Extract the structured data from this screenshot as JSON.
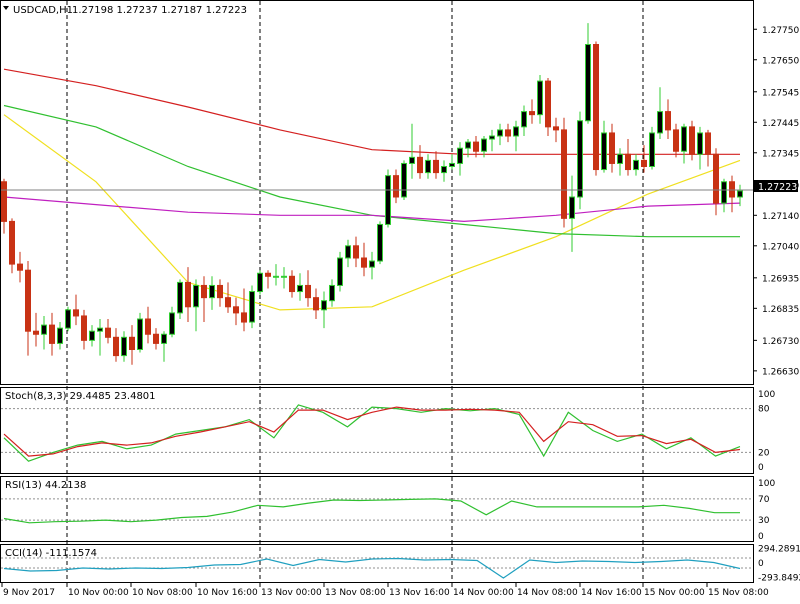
{
  "header": {
    "symbol": "USDCAD,H1",
    "ohlc": "1.27198 1.27237 1.27187 1.27223"
  },
  "price_panel": {
    "current_price": "1.27223",
    "y_ticks": [
      "1.27750",
      "1.27650",
      "1.27545",
      "1.27445",
      "1.27345",
      "1.27240",
      "1.27140",
      "1.27040",
      "1.26935",
      "1.26835",
      "1.26730",
      "1.26630"
    ]
  },
  "stoch_panel": {
    "label": "Stoch(8,3,3) 29.4485 23.4801",
    "y_ticks": [
      "100",
      "80",
      "20",
      "0"
    ]
  },
  "rsi_panel": {
    "label": "RSI(13) 44.2138",
    "y_ticks": [
      "100",
      "70",
      "30",
      "0"
    ]
  },
  "cci_panel": {
    "label": "CCI(14) -111.1574",
    "y_ticks": [
      "294.2891",
      "0",
      "-293.8492"
    ]
  },
  "x_axis": {
    "labels": [
      "9 Nov 2017",
      "10 Nov 00:00",
      "10 Nov 08:00",
      "10 Nov 16:00",
      "13 Nov 00:00",
      "13 Nov 08:00",
      "13 Nov 16:00",
      "14 Nov 00:00",
      "14 Nov 08:00",
      "14 Nov 16:00",
      "15 Nov 00:00",
      "15 Nov 08:00"
    ]
  },
  "colors": {
    "bull": "#32CD32",
    "bear": "#C83214",
    "ma_red": "#D42020",
    "ma_yellow": "#F0E020",
    "ma_green": "#30C030",
    "ma_magenta": "#C020C0",
    "stoch_main": "#30C030",
    "stoch_signal": "#D42020",
    "rsi": "#30C030",
    "cci": "#20A0C0",
    "hline": "#909090"
  },
  "chart_data": {
    "type": "candlestick",
    "title": "USDCAD,H1",
    "ylim": [
      1.266,
      1.278
    ],
    "current_price": 1.27223,
    "candles": [
      [
        1.2725,
        1.2726,
        1.2708,
        1.2712
      ],
      [
        1.2712,
        1.2713,
        1.2695,
        1.2698
      ],
      [
        1.2698,
        1.2702,
        1.2692,
        1.2696
      ],
      [
        1.2696,
        1.2699,
        1.2668,
        1.2676
      ],
      [
        1.2676,
        1.2682,
        1.2671,
        1.2675
      ],
      [
        1.2675,
        1.2681,
        1.267,
        1.2678
      ],
      [
        1.2678,
        1.2682,
        1.2668,
        1.2672
      ],
      [
        1.2672,
        1.2679,
        1.267,
        1.2677
      ],
      [
        1.2677,
        1.2684,
        1.2676,
        1.2683
      ],
      [
        1.2683,
        1.2688,
        1.2678,
        1.2681
      ],
      [
        1.2681,
        1.2683,
        1.267,
        1.2673
      ],
      [
        1.2673,
        1.2678,
        1.2671,
        1.2676
      ],
      [
        1.2676,
        1.268,
        1.2668,
        1.2677
      ],
      [
        1.2677,
        1.268,
        1.2672,
        1.2674
      ],
      [
        1.2674,
        1.2677,
        1.2666,
        1.2668
      ],
      [
        1.2668,
        1.2676,
        1.2666,
        1.2674
      ],
      [
        1.2674,
        1.2678,
        1.2665,
        1.267
      ],
      [
        1.267,
        1.2682,
        1.2669,
        1.268
      ],
      [
        1.268,
        1.2684,
        1.2672,
        1.2675
      ],
      [
        1.2675,
        1.2677,
        1.267,
        1.2672
      ],
      [
        1.2672,
        1.2676,
        1.2666,
        1.2675
      ],
      [
        1.2675,
        1.2684,
        1.2674,
        1.2682
      ],
      [
        1.2682,
        1.2693,
        1.268,
        1.2692
      ],
      [
        1.2692,
        1.2697,
        1.2679,
        1.2684
      ],
      [
        1.2684,
        1.2693,
        1.2676,
        1.2691
      ],
      [
        1.2691,
        1.2694,
        1.2679,
        1.2687
      ],
      [
        1.2687,
        1.2694,
        1.2683,
        1.2691
      ],
      [
        1.2691,
        1.2693,
        1.2684,
        1.2687
      ],
      [
        1.2687,
        1.2692,
        1.2682,
        1.2684
      ],
      [
        1.2684,
        1.2687,
        1.2678,
        1.2682
      ],
      [
        1.2682,
        1.269,
        1.2676,
        1.2679
      ],
      [
        1.2679,
        1.2691,
        1.2677,
        1.2689
      ],
      [
        1.2689,
        1.2696,
        1.2688,
        1.2695
      ],
      [
        1.2695,
        1.2696,
        1.269,
        1.2694
      ],
      [
        1.2694,
        1.2698,
        1.2691,
        1.2694
      ],
      [
        1.2694,
        1.2697,
        1.269,
        1.2694
      ],
      [
        1.2694,
        1.2696,
        1.2687,
        1.2689
      ],
      [
        1.2689,
        1.2695,
        1.2686,
        1.2691
      ],
      [
        1.2691,
        1.2696,
        1.2684,
        1.2687
      ],
      [
        1.2687,
        1.269,
        1.268,
        1.2683
      ],
      [
        1.2683,
        1.2689,
        1.2677,
        1.2686
      ],
      [
        1.2686,
        1.2693,
        1.2684,
        1.2691
      ],
      [
        1.2691,
        1.2702,
        1.2689,
        1.27
      ],
      [
        1.27,
        1.2706,
        1.2697,
        1.2704
      ],
      [
        1.2704,
        1.2707,
        1.2697,
        1.27
      ],
      [
        1.27,
        1.2705,
        1.2694,
        1.2697
      ],
      [
        1.2697,
        1.2702,
        1.2693,
        1.2699
      ],
      [
        1.2699,
        1.2712,
        1.2698,
        1.2711
      ],
      [
        1.2711,
        1.2729,
        1.271,
        1.2727
      ],
      [
        1.2727,
        1.2729,
        1.2718,
        1.272
      ],
      [
        1.272,
        1.2732,
        1.2719,
        1.2731
      ],
      [
        1.2731,
        1.2744,
        1.2726,
        1.2733
      ],
      [
        1.2733,
        1.2737,
        1.2726,
        1.2728
      ],
      [
        1.2728,
        1.2734,
        1.2726,
        1.2732
      ],
      [
        1.2732,
        1.2735,
        1.2726,
        1.2728
      ],
      [
        1.2728,
        1.2732,
        1.2725,
        1.273
      ],
      [
        1.273,
        1.2734,
        1.2729,
        1.2731
      ],
      [
        1.2731,
        1.2738,
        1.2727,
        1.2736
      ],
      [
        1.2736,
        1.2739,
        1.2733,
        1.2738
      ],
      [
        1.2738,
        1.274,
        1.2733,
        1.2735
      ],
      [
        1.2735,
        1.274,
        1.2733,
        1.2739
      ],
      [
        1.2739,
        1.2742,
        1.2735,
        1.274
      ],
      [
        1.274,
        1.2744,
        1.2737,
        1.2742
      ],
      [
        1.2742,
        1.2744,
        1.2738,
        1.274
      ],
      [
        1.274,
        1.2745,
        1.2735,
        1.2743
      ],
      [
        1.2743,
        1.275,
        1.274,
        1.2748
      ],
      [
        1.2748,
        1.2752,
        1.2744,
        1.2747
      ],
      [
        1.2747,
        1.276,
        1.2744,
        1.2758
      ],
      [
        1.2758,
        1.2759,
        1.274,
        1.2743
      ],
      [
        1.2743,
        1.2746,
        1.2738,
        1.2742
      ],
      [
        1.2742,
        1.2746,
        1.271,
        1.2713
      ],
      [
        1.2713,
        1.2727,
        1.2702,
        1.272
      ],
      [
        1.272,
        1.2748,
        1.2716,
        1.2745
      ],
      [
        1.2745,
        1.2777,
        1.2744,
        1.277
      ],
      [
        1.277,
        1.2771,
        1.2727,
        1.2729
      ],
      [
        1.2729,
        1.2745,
        1.2728,
        1.2741
      ],
      [
        1.2741,
        1.2744,
        1.2728,
        1.2731
      ],
      [
        1.2731,
        1.2736,
        1.2727,
        1.2734
      ],
      [
        1.2734,
        1.2739,
        1.2727,
        1.2729
      ],
      [
        1.2729,
        1.2734,
        1.2727,
        1.2732
      ],
      [
        1.2732,
        1.2737,
        1.2728,
        1.273
      ],
      [
        1.273,
        1.2743,
        1.2729,
        1.2741
      ],
      [
        1.2741,
        1.2756,
        1.2739,
        1.2748
      ],
      [
        1.2748,
        1.2752,
        1.2739,
        1.2742
      ],
      [
        1.2742,
        1.2744,
        1.2733,
        1.2735
      ],
      [
        1.2735,
        1.2744,
        1.2731,
        1.2743
      ],
      [
        1.2743,
        1.2745,
        1.2732,
        1.2734
      ],
      [
        1.2734,
        1.2743,
        1.2729,
        1.2741
      ],
      [
        1.2741,
        1.2742,
        1.273,
        1.2734
      ],
      [
        1.2734,
        1.2736,
        1.2714,
        1.2718
      ],
      [
        1.2718,
        1.2726,
        1.2715,
        1.2725
      ],
      [
        1.2725,
        1.2727,
        1.2715,
        1.272
      ],
      [
        1.272,
        1.2724,
        1.2717,
        1.2722
      ]
    ],
    "moving_averages": [
      {
        "color_key": "ma_red",
        "values": [
          1.27619,
          1.27565,
          1.27495,
          1.2742,
          1.27355,
          1.2734,
          1.2734,
          1.2734,
          1.2734
        ]
      },
      {
        "color_key": "ma_yellow",
        "values": [
          1.2747,
          1.2725,
          1.2692,
          1.2683,
          1.2684,
          1.2696,
          1.2707,
          1.2721,
          1.2732
        ]
      },
      {
        "color_key": "ma_green",
        "values": [
          1.275,
          1.2743,
          1.273,
          1.272,
          1.2714,
          1.2711,
          1.2708,
          1.2707,
          1.2707
        ]
      },
      {
        "color_key": "ma_magenta",
        "values": [
          1.272,
          1.27175,
          1.2715,
          1.2714,
          1.2714,
          1.2712,
          1.2714,
          1.2717,
          1.2718
        ]
      }
    ],
    "stochastic": {
      "main": [
        40,
        8,
        20,
        30,
        35,
        25,
        30,
        45,
        50,
        55,
        65,
        40,
        85,
        75,
        55,
        82,
        80,
        75,
        80,
        77,
        80,
        72,
        15,
        75,
        50,
        35,
        45,
        25,
        40,
        15,
        28
      ],
      "signal": [
        45,
        15,
        18,
        28,
        33,
        30,
        33,
        42,
        48,
        55,
        62,
        48,
        78,
        78,
        65,
        75,
        82,
        78,
        78,
        79,
        78,
        75,
        35,
        62,
        58,
        42,
        43,
        32,
        38,
        20,
        24
      ]
    },
    "rsi": [
      33,
      25,
      27,
      28,
      30,
      27,
      30,
      35,
      37,
      45,
      58,
      55,
      62,
      68,
      67,
      68,
      69,
      70,
      66,
      40,
      66,
      55,
      55,
      55,
      55,
      55,
      58,
      52,
      44,
      44
    ],
    "cci": [
      -110,
      -160,
      -150,
      -100,
      -120,
      -100,
      -110,
      -90,
      -40,
      -30,
      80,
      -50,
      70,
      20,
      80,
      90,
      60,
      70,
      50,
      -300,
      60,
      10,
      40,
      30,
      10,
      30,
      60,
      10,
      -110
    ]
  }
}
